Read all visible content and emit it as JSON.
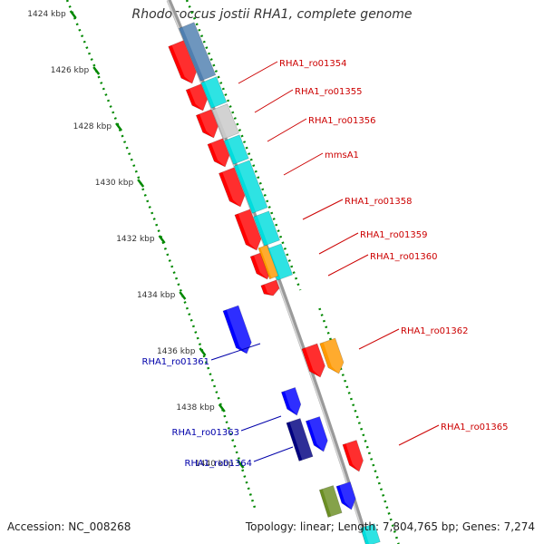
{
  "title": "Rhodococcus jostii RHA1, complete genome",
  "footer": {
    "accession": "Accession: NC_008268",
    "summary": "Topology: linear; Length: 7,804,765 bp; Genes: 7,274"
  },
  "colors": {
    "red": "#ff0000",
    "cyan": "#00dddd",
    "steel_blue": "#4f7fb0",
    "light_gray": "#c8c8c8",
    "orange": "#ff9900",
    "blue": "#0000ff",
    "dark_blue": "#000080",
    "olive_green": "#6b8e23",
    "backbone": "#888888",
    "tick_green": "#008800",
    "right_label": "#cc0000",
    "left_label": "#0000aa"
  },
  "scale_ticks": [
    "1424 kbp",
    "1426 kbp",
    "1428 kbp",
    "1430 kbp",
    "1432 kbp",
    "1434 kbp",
    "1436 kbp",
    "1438 kbp",
    "1440 kbp"
  ],
  "right_gene_labels": [
    "RHA1_ro01354",
    "RHA1_ro01355",
    "RHA1_ro01356",
    "mmsA1",
    "RHA1_ro01358",
    "RHA1_ro01359",
    "RHA1_ro01360",
    "RHA1_ro01362",
    "RHA1_ro01365"
  ],
  "left_gene_labels": [
    "RHA1_ro01361",
    "RHA1_ro01363",
    "RHA1_ro01364"
  ]
}
